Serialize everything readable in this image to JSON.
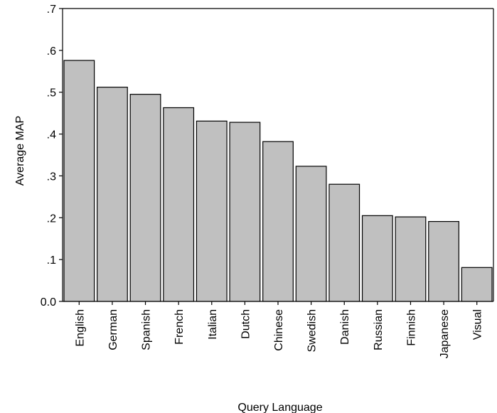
{
  "chart_data": {
    "type": "bar",
    "categories": [
      "English",
      "German",
      "Spanish",
      "French",
      "Italian",
      "Dutch",
      "Chinese",
      "Swedish",
      "Danish",
      "Russian",
      "Finnish",
      "Japanese",
      "Visual"
    ],
    "values": [
      0.576,
      0.512,
      0.495,
      0.463,
      0.431,
      0.428,
      0.382,
      0.323,
      0.28,
      0.205,
      0.202,
      0.191,
      0.081
    ],
    "title": "",
    "xlabel": "Query Language",
    "ylabel": "Average MAP",
    "ylim": [
      0,
      0.7
    ],
    "yticks": [
      0.0,
      0.1,
      0.2,
      0.3,
      0.4,
      0.5,
      0.6,
      0.7
    ],
    "ytick_labels": [
      "0.0",
      ".1",
      ".2",
      ".3",
      ".4",
      ".5",
      ".6",
      ".7"
    ],
    "grid": false,
    "legend": "none",
    "colors": {
      "bar_fill": "#c0c0c0",
      "bar_stroke": "#000000"
    }
  }
}
